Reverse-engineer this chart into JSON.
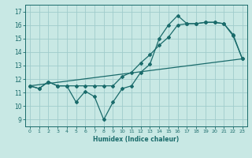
{
  "xlabel": "Humidex (Indice chaleur)",
  "xlim": [
    -0.5,
    23.5
  ],
  "ylim": [
    8.5,
    17.5
  ],
  "yticks": [
    9,
    10,
    11,
    12,
    13,
    14,
    15,
    16,
    17
  ],
  "xticks": [
    0,
    1,
    2,
    3,
    4,
    5,
    6,
    7,
    8,
    9,
    10,
    11,
    12,
    13,
    14,
    15,
    16,
    17,
    18,
    19,
    20,
    21,
    22,
    23
  ],
  "bg_color": "#c8e8e4",
  "grid_color": "#a0cccc",
  "line_color": "#1a6b6b",
  "line1_x": [
    0,
    1,
    2,
    3,
    4,
    5,
    6,
    7,
    8,
    9,
    10,
    11,
    12,
    13,
    14,
    15,
    16,
    17,
    18,
    19,
    20,
    21,
    22,
    23
  ],
  "line1_y": [
    11.5,
    11.3,
    11.8,
    11.5,
    11.5,
    10.3,
    11.1,
    10.7,
    9.0,
    10.3,
    11.3,
    11.5,
    12.5,
    13.1,
    15.0,
    16.0,
    16.7,
    16.1,
    16.1,
    16.2,
    16.2,
    16.1,
    15.2,
    13.5
  ],
  "line2_x": [
    0,
    1,
    2,
    3,
    4,
    5,
    6,
    7,
    8,
    9,
    10,
    11,
    12,
    13,
    14,
    15,
    16,
    17,
    18,
    19,
    20,
    21,
    22,
    23
  ],
  "line2_y": [
    11.5,
    11.3,
    11.8,
    11.5,
    11.5,
    11.5,
    11.5,
    11.5,
    11.5,
    11.5,
    12.2,
    12.5,
    13.2,
    13.8,
    14.5,
    15.1,
    16.0,
    16.1,
    16.1,
    16.2,
    16.2,
    16.1,
    15.3,
    13.5
  ],
  "line3_x": [
    0,
    23
  ],
  "line3_y": [
    11.5,
    13.5
  ]
}
